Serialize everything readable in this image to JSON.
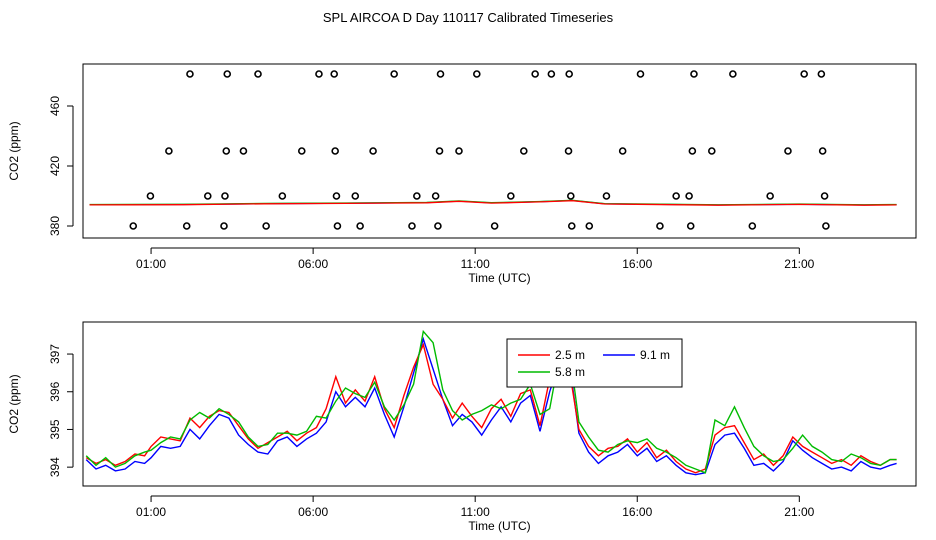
{
  "title": "SPL AIRCOA D  Day 110117  Calibrated Timeseries",
  "chart_data": [
    {
      "type": "scatter",
      "xlabel": "Time (UTC)",
      "ylabel": "CO2 (ppm)",
      "x_ticks": [
        {
          "value": 1,
          "label": "01:00"
        },
        {
          "value": 6,
          "label": "06:00"
        },
        {
          "value": 11,
          "label": "11:00"
        },
        {
          "value": 16,
          "label": "16:00"
        },
        {
          "value": 21,
          "label": "21:00"
        }
      ],
      "y_ticks": [
        {
          "value": 380,
          "label": "380"
        },
        {
          "value": 420,
          "label": "420"
        },
        {
          "value": 460,
          "label": "460"
        }
      ],
      "xlim": [
        -1.1,
        24.6
      ],
      "ylim": [
        372,
        488
      ],
      "points": [
        [
          0.45,
          380
        ],
        [
          0.98,
          400
        ],
        [
          1.55,
          430
        ],
        [
          2.1,
          380
        ],
        [
          2.2,
          488
        ],
        [
          2.75,
          400
        ],
        [
          3.25,
          380
        ],
        [
          3.28,
          400
        ],
        [
          3.32,
          430
        ],
        [
          3.35,
          488
        ],
        [
          3.85,
          430
        ],
        [
          4.3,
          488
        ],
        [
          4.55,
          380
        ],
        [
          5.05,
          400
        ],
        [
          5.65,
          430
        ],
        [
          6.18,
          488
        ],
        [
          6.65,
          488
        ],
        [
          6.68,
          430
        ],
        [
          6.72,
          400
        ],
        [
          6.75,
          380
        ],
        [
          7.3,
          400
        ],
        [
          7.45,
          380
        ],
        [
          7.85,
          430
        ],
        [
          8.5,
          488
        ],
        [
          9.05,
          380
        ],
        [
          9.2,
          400
        ],
        [
          9.78,
          400
        ],
        [
          9.85,
          380
        ],
        [
          9.9,
          430
        ],
        [
          9.93,
          488
        ],
        [
          10.5,
          430
        ],
        [
          11.05,
          488
        ],
        [
          11.6,
          380
        ],
        [
          12.1,
          400
        ],
        [
          12.5,
          430
        ],
        [
          12.85,
          488
        ],
        [
          13.35,
          488
        ],
        [
          13.88,
          430
        ],
        [
          13.9,
          488
        ],
        [
          13.95,
          400
        ],
        [
          13.98,
          380
        ],
        [
          14.52,
          380
        ],
        [
          15.05,
          400
        ],
        [
          15.55,
          430
        ],
        [
          16.1,
          488
        ],
        [
          16.7,
          380
        ],
        [
          17.2,
          400
        ],
        [
          17.6,
          400
        ],
        [
          17.65,
          380
        ],
        [
          17.7,
          430
        ],
        [
          17.75,
          488
        ],
        [
          18.3,
          430
        ],
        [
          18.95,
          488
        ],
        [
          19.55,
          380
        ],
        [
          20.1,
          400
        ],
        [
          20.65,
          430
        ],
        [
          21.15,
          488
        ],
        [
          21.68,
          488
        ],
        [
          21.72,
          430
        ],
        [
          21.78,
          400
        ],
        [
          21.82,
          380
        ]
      ],
      "series": [
        {
          "name": "2.5 m",
          "color": "#ff0000"
        },
        {
          "name": "5.8 m",
          "color": "#00bb00"
        },
        {
          "name": "9.1 m",
          "color": "#0000ff"
        }
      ],
      "line_x": [
        -0.9,
        2.0,
        4.5,
        7.0,
        9.5,
        10.5,
        11.5,
        13.0,
        14.0,
        15.0,
        16.0,
        18.5,
        21.0,
        23.0,
        24.0
      ],
      "line_y": [
        394.2,
        394.3,
        394.9,
        395.2,
        395.6,
        396.6,
        395.4,
        396.2,
        397.0,
        394.8,
        394.6,
        394.0,
        394.5,
        394.0,
        394.2
      ]
    },
    {
      "type": "line",
      "xlabel": "Time (UTC)",
      "ylabel": "CO2 (ppm)",
      "x_ticks": [
        {
          "value": 1,
          "label": "01:00"
        },
        {
          "value": 6,
          "label": "06:00"
        },
        {
          "value": 11,
          "label": "11:00"
        },
        {
          "value": 16,
          "label": "16:00"
        },
        {
          "value": 21,
          "label": "21:00"
        }
      ],
      "y_ticks": [
        {
          "value": 394,
          "label": "394"
        },
        {
          "value": 395,
          "label": "395"
        },
        {
          "value": 396,
          "label": "396"
        },
        {
          "value": 397,
          "label": "397"
        }
      ],
      "xlim": [
        -1.1,
        24.6
      ],
      "ylim": [
        393.5,
        397.85
      ],
      "legend": {
        "entries": [
          {
            "name": "2.5 m",
            "color": "#ff0000"
          },
          {
            "name": "9.1 m",
            "color": "#0000ff"
          },
          {
            "name": "5.8 m",
            "color": "#00bb00"
          }
        ]
      },
      "x": [
        -1.0,
        -0.7,
        -0.4,
        -0.1,
        0.2,
        0.5,
        0.8,
        1.0,
        1.3,
        1.6,
        1.9,
        2.2,
        2.5,
        2.8,
        3.1,
        3.4,
        3.7,
        4.0,
        4.3,
        4.6,
        4.9,
        5.2,
        5.5,
        5.8,
        6.1,
        6.4,
        6.7,
        7.0,
        7.3,
        7.6,
        7.9,
        8.2,
        8.5,
        8.8,
        9.1,
        9.4,
        9.7,
        10.0,
        10.3,
        10.6,
        10.9,
        11.2,
        11.5,
        11.8,
        12.1,
        12.4,
        12.7,
        13.0,
        13.3,
        13.6,
        13.9,
        14.2,
        14.5,
        14.8,
        15.1,
        15.4,
        15.7,
        16.0,
        16.3,
        16.6,
        16.9,
        17.2,
        17.5,
        17.8,
        18.1,
        18.4,
        18.7,
        19.0,
        19.3,
        19.6,
        19.9,
        20.2,
        20.5,
        20.8,
        21.1,
        21.4,
        21.7,
        22.0,
        22.3,
        22.6,
        22.9,
        23.2,
        23.5,
        23.8,
        24.0
      ],
      "series": [
        {
          "name": "2.5 m",
          "color": "#ff0000",
          "values": [
            394.25,
            394.1,
            394.2,
            394.05,
            394.15,
            394.35,
            394.3,
            394.55,
            394.8,
            394.75,
            394.7,
            395.3,
            395.05,
            395.35,
            395.5,
            395.45,
            395.1,
            394.75,
            394.5,
            394.65,
            394.8,
            394.95,
            394.7,
            394.9,
            395.05,
            395.55,
            396.4,
            395.7,
            396.05,
            395.75,
            396.4,
            395.55,
            395.05,
            395.9,
            396.65,
            397.25,
            396.2,
            395.8,
            395.3,
            395.7,
            395.35,
            395.05,
            395.55,
            395.8,
            395.35,
            395.95,
            396.05,
            395.1,
            396.35,
            397.0,
            396.6,
            395.0,
            394.55,
            394.3,
            394.5,
            394.55,
            394.75,
            394.4,
            394.65,
            394.25,
            394.45,
            394.15,
            393.95,
            393.85,
            393.95,
            394.85,
            395.05,
            395.1,
            394.65,
            394.2,
            394.35,
            394.05,
            394.3,
            394.8,
            394.55,
            394.4,
            394.25,
            394.1,
            394.2,
            394.05,
            394.3,
            394.15,
            394.05,
            394.2,
            394.2
          ]
        },
        {
          "name": "5.8 m",
          "color": "#00bb00",
          "values": [
            394.3,
            394.05,
            394.25,
            394.0,
            394.1,
            394.3,
            394.4,
            394.45,
            394.65,
            394.8,
            394.75,
            395.25,
            395.45,
            395.3,
            395.55,
            395.4,
            395.2,
            394.8,
            394.55,
            394.6,
            394.9,
            394.9,
            394.85,
            394.95,
            395.35,
            395.3,
            395.75,
            396.1,
            395.95,
            395.85,
            396.25,
            395.6,
            395.25,
            395.65,
            396.2,
            397.6,
            397.3,
            396.05,
            395.5,
            395.25,
            395.4,
            395.5,
            395.65,
            395.55,
            395.7,
            395.8,
            396.2,
            395.4,
            395.55,
            396.95,
            397.15,
            395.2,
            394.8,
            394.45,
            394.4,
            394.6,
            394.7,
            394.65,
            394.75,
            394.5,
            394.4,
            394.25,
            394.05,
            393.95,
            393.85,
            395.25,
            395.1,
            395.6,
            395.05,
            394.55,
            394.3,
            394.15,
            394.2,
            394.5,
            394.85,
            394.55,
            394.4,
            394.2,
            394.15,
            394.35,
            394.25,
            394.1,
            394.05,
            394.2,
            394.2
          ]
        },
        {
          "name": "9.1 m",
          "color": "#0000ff",
          "values": [
            394.2,
            393.95,
            394.05,
            393.9,
            393.95,
            394.15,
            394.1,
            394.25,
            394.55,
            394.5,
            394.55,
            395.0,
            394.75,
            395.1,
            395.4,
            395.3,
            394.85,
            394.6,
            394.4,
            394.35,
            394.7,
            394.8,
            394.55,
            394.75,
            394.9,
            395.2,
            396.0,
            395.6,
            395.85,
            395.6,
            396.1,
            395.4,
            394.8,
            395.6,
            396.5,
            397.4,
            396.6,
            395.8,
            395.1,
            395.4,
            395.2,
            394.85,
            395.25,
            395.6,
            395.2,
            395.7,
            395.9,
            394.95,
            396.0,
            396.8,
            396.8,
            394.9,
            394.4,
            394.1,
            394.3,
            394.4,
            394.6,
            394.3,
            394.5,
            394.15,
            394.3,
            394.05,
            393.85,
            393.8,
            393.85,
            394.6,
            394.85,
            394.9,
            394.5,
            394.05,
            394.1,
            393.9,
            394.15,
            394.7,
            394.45,
            394.25,
            394.1,
            393.95,
            394.0,
            393.9,
            394.15,
            394.0,
            393.95,
            394.05,
            394.1
          ]
        }
      ]
    }
  ]
}
